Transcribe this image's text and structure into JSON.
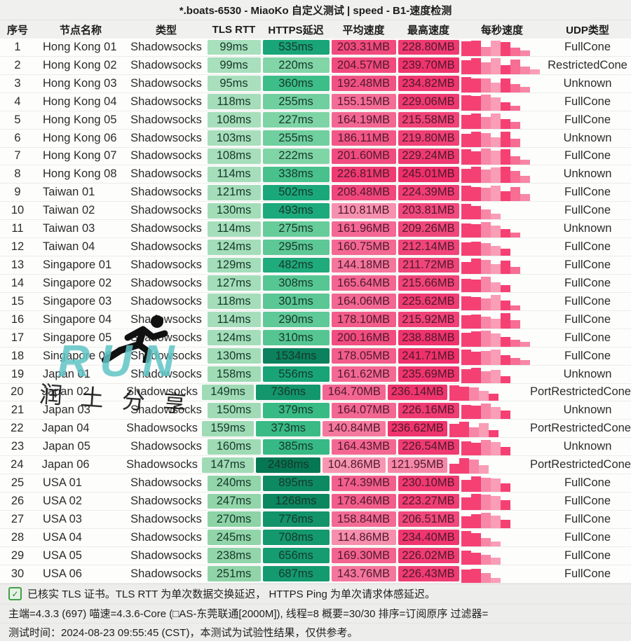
{
  "title": "*.boats-6530 - MiaoKo 自定义测试 | speed - B1-速度检测",
  "table": {
    "headers": [
      "序号",
      "节点名称",
      "类型",
      "TLS RTT",
      "HTTPS延迟",
      "平均速度",
      "最高速度",
      "每秒速度",
      "UDP类型"
    ],
    "rows": [
      {
        "no": "1",
        "name": "Hong Kong 01",
        "type": "Shadowsocks",
        "tls": "99ms",
        "https": "535ms",
        "avg": "203.31MB",
        "max": "228.80MB",
        "udp": "FullCone",
        "bars": [
          0.88,
          0.92,
          0.55,
          0.9,
          0.85,
          0.5,
          0.32
        ]
      },
      {
        "no": "2",
        "name": "Hong Kong 02",
        "type": "Shadowsocks",
        "tls": "99ms",
        "https": "220ms",
        "avg": "204.57MB",
        "max": "239.70MB",
        "udp": "RestrictedCone",
        "bars": [
          0.82,
          0.95,
          0.7,
          0.95,
          0.55,
          0.88,
          0.45,
          0.3
        ]
      },
      {
        "no": "3",
        "name": "Hong Kong 03",
        "type": "Shadowsocks",
        "tls": "95ms",
        "https": "360ms",
        "avg": "192.48MB",
        "max": "234.82MB",
        "udp": "Unknown",
        "bars": [
          0.9,
          0.85,
          0.82,
          0.6,
          0.85,
          0.5,
          0.33
        ]
      },
      {
        "no": "4",
        "name": "Hong Kong 04",
        "type": "Shadowsocks",
        "tls": "118ms",
        "https": "255ms",
        "avg": "155.15MB",
        "max": "229.06MB",
        "udp": "FullCone",
        "bars": [
          0.9,
          0.86,
          0.95,
          0.8,
          0.5,
          0.3
        ]
      },
      {
        "no": "5",
        "name": "Hong Kong 05",
        "type": "Shadowsocks",
        "tls": "108ms",
        "https": "227ms",
        "avg": "164.19MB",
        "max": "215.58MB",
        "udp": "FullCone",
        "bars": [
          0.85,
          0.9,
          0.7,
          0.9,
          0.6,
          0.4
        ]
      },
      {
        "no": "6",
        "name": "Hong Kong 06",
        "type": "Shadowsocks",
        "tls": "103ms",
        "https": "255ms",
        "avg": "186.11MB",
        "max": "219.80MB",
        "udp": "Unknown",
        "bars": [
          0.8,
          0.9,
          0.85,
          0.6,
          0.9,
          0.5
        ]
      },
      {
        "no": "7",
        "name": "Hong Kong 07",
        "type": "Shadowsocks",
        "tls": "108ms",
        "https": "222ms",
        "avg": "201.60MB",
        "max": "229.24MB",
        "udp": "FullCone",
        "bars": [
          0.9,
          0.8,
          0.95,
          0.85,
          0.9,
          0.5,
          0.3
        ]
      },
      {
        "no": "8",
        "name": "Hong Kong 08",
        "type": "Shadowsocks",
        "tls": "114ms",
        "https": "338ms",
        "avg": "226.81MB",
        "max": "245.01MB",
        "udp": "Unknown",
        "bars": [
          0.85,
          0.95,
          0.8,
          0.9,
          0.95,
          0.7,
          0.42
        ]
      },
      {
        "no": "9",
        "name": "Taiwan 01",
        "type": "Shadowsocks",
        "tls": "121ms",
        "https": "502ms",
        "avg": "208.48MB",
        "max": "224.39MB",
        "udp": "FullCone",
        "bars": [
          0.9,
          0.85,
          0.8,
          0.9,
          0.6,
          0.85,
          0.4
        ]
      },
      {
        "no": "10",
        "name": "Taiwan 02",
        "type": "Shadowsocks",
        "tls": "130ms",
        "https": "493ms",
        "avg": "110.81MB",
        "max": "203.81MB",
        "udp": "FullCone",
        "bars": [
          0.9,
          0.8,
          0.6,
          0.32
        ]
      },
      {
        "no": "11",
        "name": "Taiwan 03",
        "type": "Shadowsocks",
        "tls": "114ms",
        "https": "275ms",
        "avg": "161.96MB",
        "max": "209.26MB",
        "udp": "Unknown",
        "bars": [
          0.85,
          0.8,
          0.9,
          0.7,
          0.5,
          0.3
        ]
      },
      {
        "no": "12",
        "name": "Taiwan 04",
        "type": "Shadowsocks",
        "tls": "124ms",
        "https": "295ms",
        "avg": "160.75MB",
        "max": "212.14MB",
        "udp": "FullCone",
        "bars": [
          0.8,
          0.85,
          0.75,
          0.6,
          0.4
        ]
      },
      {
        "no": "13",
        "name": "Singapore 01",
        "type": "Shadowsocks",
        "tls": "129ms",
        "https": "482ms",
        "avg": "144.18MB",
        "max": "211.72MB",
        "udp": "FullCone",
        "bars": [
          0.7,
          0.9,
          0.85,
          0.6,
          0.8,
          0.4
        ]
      },
      {
        "no": "14",
        "name": "Singapore 02",
        "type": "Shadowsocks",
        "tls": "127ms",
        "https": "308ms",
        "avg": "165.64MB",
        "max": "215.66MB",
        "udp": "FullCone",
        "bars": [
          0.8,
          0.75,
          0.9,
          0.6,
          0.4
        ]
      },
      {
        "no": "15",
        "name": "Singapore 03",
        "type": "Shadowsocks",
        "tls": "118ms",
        "https": "301ms",
        "avg": "164.06MB",
        "max": "225.62MB",
        "udp": "FullCone",
        "bars": [
          0.85,
          0.8,
          0.7,
          0.9,
          0.6,
          0.3
        ]
      },
      {
        "no": "16",
        "name": "Singapore 04",
        "type": "Shadowsocks",
        "tls": "114ms",
        "https": "290ms",
        "avg": "178.10MB",
        "max": "215.92MB",
        "udp": "FullCone",
        "bars": [
          0.8,
          0.85,
          0.7,
          0.6,
          0.9,
          0.5
        ]
      },
      {
        "no": "17",
        "name": "Singapore 05",
        "type": "Shadowsocks",
        "tls": "124ms",
        "https": "310ms",
        "avg": "200.16MB",
        "max": "238.88MB",
        "udp": "FullCone",
        "bars": [
          0.85,
          0.9,
          0.95,
          0.8,
          0.6,
          0.4,
          0.3
        ]
      },
      {
        "no": "18",
        "name": "Singapore 06",
        "type": "Shadowsocks",
        "tls": "130ms",
        "https": "1534ms",
        "avg": "178.05MB",
        "max": "241.71MB",
        "udp": "FullCone",
        "bars": [
          0.9,
          0.8,
          0.85,
          0.9,
          0.6,
          0.42,
          0.3
        ]
      },
      {
        "no": "19",
        "name": "Japan 01",
        "type": "Shadowsocks",
        "tls": "158ms",
        "https": "556ms",
        "avg": "161.62MB",
        "max": "235.69MB",
        "udp": "Unknown",
        "bars": [
          0.85,
          0.9,
          0.7,
          0.8,
          0.4
        ]
      },
      {
        "no": "20",
        "name": "Japan 02",
        "type": "Shadowsocks",
        "tls": "149ms",
        "https": "736ms",
        "avg": "164.70MB",
        "max": "236.14MB",
        "udp": "PortRestrictedCone",
        "bars": [
          0.9,
          0.85,
          0.8,
          0.6,
          0.4
        ]
      },
      {
        "no": "21",
        "name": "Japan 03",
        "type": "Shadowsocks",
        "tls": "150ms",
        "https": "379ms",
        "avg": "164.07MB",
        "max": "226.16MB",
        "udp": "Unknown",
        "bars": [
          0.85,
          0.8,
          0.9,
          0.7,
          0.5
        ]
      },
      {
        "no": "22",
        "name": "Japan 04",
        "type": "Shadowsocks",
        "tls": "159ms",
        "https": "373ms",
        "avg": "140.84MB",
        "max": "236.62MB",
        "udp": "PortRestrictedCone",
        "bars": [
          0.8,
          0.9,
          0.6,
          0.85,
          0.4
        ]
      },
      {
        "no": "23",
        "name": "Japan 05",
        "type": "Shadowsocks",
        "tls": "160ms",
        "https": "385ms",
        "avg": "164.43MB",
        "max": "226.54MB",
        "udp": "Unknown",
        "bars": [
          0.85,
          0.75,
          0.9,
          0.8,
          0.5
        ]
      },
      {
        "no": "24",
        "name": "Japan 06",
        "type": "Shadowsocks",
        "tls": "147ms",
        "https": "2498ms",
        "avg": "104.86MB",
        "max": "121.95MB",
        "udp": "PortRestrictedCone",
        "bars": [
          0.6,
          0.9,
          0.85,
          0.5
        ]
      },
      {
        "no": "25",
        "name": "USA 01",
        "type": "Shadowsocks",
        "tls": "240ms",
        "https": "895ms",
        "avg": "174.39MB",
        "max": "230.10MB",
        "udp": "FullCone",
        "bars": [
          0.7,
          0.9,
          0.85,
          0.8,
          0.5
        ]
      },
      {
        "no": "26",
        "name": "USA 02",
        "type": "Shadowsocks",
        "tls": "247ms",
        "https": "1268ms",
        "avg": "178.46MB",
        "max": "223.27MB",
        "udp": "FullCone",
        "bars": [
          0.75,
          0.95,
          0.9,
          0.85,
          0.6
        ]
      },
      {
        "no": "27",
        "name": "USA 03",
        "type": "Shadowsocks",
        "tls": "270ms",
        "https": "776ms",
        "avg": "158.84MB",
        "max": "206.51MB",
        "udp": "FullCone",
        "bars": [
          0.7,
          0.85,
          0.9,
          0.75,
          0.5
        ]
      },
      {
        "no": "28",
        "name": "USA 04",
        "type": "Shadowsocks",
        "tls": "245ms",
        "https": "708ms",
        "avg": "114.86MB",
        "max": "234.40MB",
        "udp": "FullCone",
        "bars": [
          0.9,
          0.8,
          0.5,
          0.3
        ]
      },
      {
        "no": "29",
        "name": "USA 05",
        "type": "Shadowsocks",
        "tls": "238ms",
        "https": "656ms",
        "avg": "169.30MB",
        "max": "226.02MB",
        "udp": "FullCone",
        "bars": [
          0.85,
          0.7,
          0.6,
          0.4
        ]
      },
      {
        "no": "30",
        "name": "USA 06",
        "type": "Shadowsocks",
        "tls": "251ms",
        "https": "687ms",
        "avg": "143.76MB",
        "max": "226.43MB",
        "udp": "FullCone",
        "bars": [
          0.8,
          0.85,
          0.6,
          0.3
        ]
      }
    ]
  },
  "footer": {
    "line1": "已核实 TLS 证书。TLS RTT 为单次数据交换延迟， HTTPS Ping 为单次请求体感延迟。",
    "line2": "主端=4.3.3 (697) 喵速=4.3.6-Core (□AS-东莞联通[2000M]), 线程=8 概要=30/30 排序=订阅原序 过滤器=",
    "line3": "测试时间：2024-08-23 09:55:45 (CST)，本测试为试验性结果，仅供参考。",
    "check_icon": "✓"
  },
  "watermark": {
    "run_text": "RUN",
    "share_text": "润土分享"
  },
  "colors": {
    "tls_stops": [
      95,
      270
    ],
    "tls_colors": [
      "#a9dfbd",
      "#8dd3a6"
    ],
    "https_stops": [
      210,
      360,
      500,
      900,
      2500
    ],
    "https_colors": [
      "#86d7a9",
      "#3dbd87",
      "#1aa87a",
      "#0e8a63",
      "#067753"
    ],
    "speed_stops": [
      100,
      150,
      200,
      250
    ],
    "speed_colors": [
      "#f79ab5",
      "#f4719a",
      "#f14d80",
      "#ee2c66"
    ],
    "bar_colors": [
      "#f54073",
      "#f76d94",
      "#f887a7",
      "#fa9db6"
    ],
    "check_green": "#43a047",
    "watermark_teal": "#5fc4c6"
  }
}
